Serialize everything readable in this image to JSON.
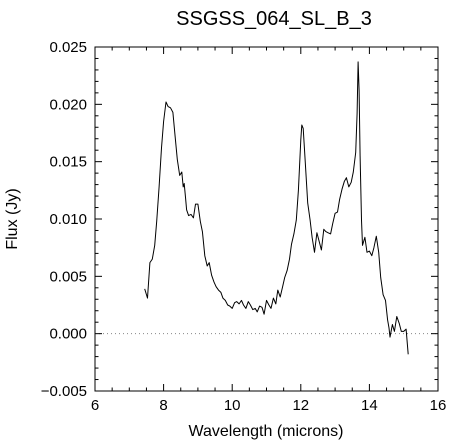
{
  "chart_data": {
    "type": "line",
    "title": "SSGSS_064_SL_B_3",
    "xlabel": "Wavelength (microns)",
    "ylabel": "Flux (Jy)",
    "xlim": [
      6,
      16
    ],
    "ylim": [
      -0.005,
      0.025
    ],
    "x_ticks": [
      6,
      8,
      10,
      12,
      14,
      16
    ],
    "x_tick_labels": [
      "6",
      "8",
      "10",
      "12",
      "14",
      "16"
    ],
    "y_ticks": [
      -0.005,
      0.0,
      0.005,
      0.01,
      0.015,
      0.02,
      0.025
    ],
    "y_tick_labels": [
      "−0.005",
      "0.000",
      "0.005",
      "0.010",
      "0.015",
      "0.020",
      "0.025"
    ],
    "grid": false,
    "reference_line": {
      "y": 0.0,
      "style": "dotted"
    },
    "colors": {
      "line": "#000000",
      "reference_line": "#888888",
      "axes": "#000000"
    },
    "series": [
      {
        "x": [
          7.45,
          7.53,
          7.6,
          7.67,
          7.74,
          7.8,
          7.87,
          7.94,
          8.0,
          8.07,
          8.13,
          8.2,
          8.27,
          8.33,
          8.4,
          8.47,
          8.53,
          8.57,
          8.6,
          8.64,
          8.67,
          8.73,
          8.8,
          8.87,
          8.93,
          9.0,
          9.07,
          9.13,
          9.2,
          9.27,
          9.33,
          9.4,
          9.47,
          9.53,
          9.6,
          9.67,
          9.73,
          9.8,
          9.87,
          9.93,
          10.0,
          10.07,
          10.13,
          10.2,
          10.27,
          10.33,
          10.4,
          10.47,
          10.53,
          10.6,
          10.67,
          10.73,
          10.8,
          10.87,
          10.93,
          11.0,
          11.07,
          11.13,
          11.2,
          11.27,
          11.33,
          11.4,
          11.47,
          11.53,
          11.6,
          11.67,
          11.73,
          11.8,
          11.87,
          11.93,
          12.0,
          12.03,
          12.07,
          12.13,
          12.2,
          12.27,
          12.33,
          12.4,
          12.47,
          12.53,
          12.6,
          12.67,
          12.73,
          12.8,
          12.87,
          12.93,
          13.0,
          13.07,
          13.13,
          13.2,
          13.27,
          13.33,
          13.4,
          13.47,
          13.53,
          13.6,
          13.64,
          13.67,
          13.7,
          13.73,
          13.77,
          13.8,
          13.87,
          13.93,
          14.0,
          14.07,
          14.13,
          14.2,
          14.27,
          14.33,
          14.4,
          14.47,
          14.53,
          14.57,
          14.6,
          14.67,
          14.73,
          14.8,
          14.87,
          14.93,
          15.0,
          15.07,
          15.13
        ],
        "y": [
          0.0039,
          0.0031,
          0.0062,
          0.0065,
          0.0077,
          0.0098,
          0.0128,
          0.0162,
          0.0185,
          0.0202,
          0.0198,
          0.0197,
          0.0193,
          0.0174,
          0.0152,
          0.0138,
          0.0141,
          0.0128,
          0.0131,
          0.0118,
          0.0108,
          0.0103,
          0.0104,
          0.0101,
          0.0113,
          0.0113,
          0.0098,
          0.0089,
          0.0068,
          0.0059,
          0.0062,
          0.0051,
          0.0045,
          0.0041,
          0.0038,
          0.0036,
          0.0031,
          0.0029,
          0.0025,
          0.0024,
          0.0022,
          0.0027,
          0.0028,
          0.0026,
          0.0029,
          0.0025,
          0.0022,
          0.0028,
          0.0025,
          0.0021,
          0.0022,
          0.0019,
          0.0024,
          0.0023,
          0.0017,
          0.0029,
          0.0025,
          0.0022,
          0.0031,
          0.0026,
          0.0038,
          0.0032,
          0.0041,
          0.0049,
          0.0055,
          0.0065,
          0.0078,
          0.0087,
          0.0099,
          0.0125,
          0.0169,
          0.0182,
          0.0179,
          0.0149,
          0.0114,
          0.0099,
          0.0084,
          0.0071,
          0.0088,
          0.0081,
          0.0073,
          0.0091,
          0.0089,
          0.0088,
          0.0087,
          0.0096,
          0.0105,
          0.0106,
          0.0117,
          0.0126,
          0.0133,
          0.0136,
          0.0128,
          0.0132,
          0.0141,
          0.0158,
          0.0192,
          0.0237,
          0.0212,
          0.0155,
          0.0099,
          0.0077,
          0.0084,
          0.0071,
          0.0072,
          0.0068,
          0.0075,
          0.0085,
          0.0071,
          0.0049,
          0.0034,
          0.0029,
          0.0012,
          0.0005,
          -0.0003,
          0.0008,
          0.0002,
          0.0015,
          0.0009,
          0.0002,
          0.0002,
          0.0004,
          -0.0018
        ]
      }
    ]
  }
}
